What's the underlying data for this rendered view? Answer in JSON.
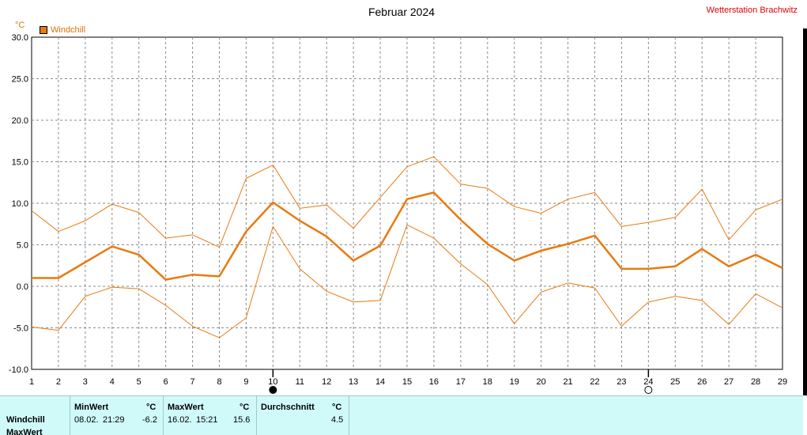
{
  "header": {
    "title": "Februar 2024",
    "station": "Wetterstation Brachwitz",
    "unit": "°C"
  },
  "legend": {
    "label": "Windchill",
    "color": "#e87a10"
  },
  "chart_data": {
    "type": "line",
    "title": "Februar 2024",
    "ylabel": "°C",
    "xlabel": "",
    "ylim": [
      -10,
      30
    ],
    "xlim": [
      1,
      29
    ],
    "grid": true,
    "legend_position": "top-left",
    "x": [
      1,
      2,
      3,
      4,
      5,
      6,
      7,
      8,
      9,
      10,
      11,
      12,
      13,
      14,
      15,
      16,
      17,
      18,
      19,
      20,
      21,
      22,
      23,
      24,
      25,
      26,
      27,
      28,
      29
    ],
    "x_tick_labels": [
      "1",
      "2",
      "3",
      "4",
      "5",
      "6",
      "7",
      "8",
      "9",
      "10",
      "11",
      "12",
      "13",
      "14",
      "15",
      "16",
      "17",
      "18",
      "19",
      "20",
      "21",
      "22",
      "23",
      "24",
      "25",
      "26",
      "27",
      "28",
      "29"
    ],
    "y_tick_labels": [
      "30.0",
      "25.0",
      "20.0",
      "15.0",
      "10.0",
      "5.0",
      "0.0",
      "-5.0",
      "-10.0"
    ],
    "series": [
      {
        "name": "Windchill",
        "role": "mean",
        "values": [
          1.0,
          1.0,
          2.9,
          4.8,
          3.8,
          0.8,
          1.4,
          1.2,
          6.6,
          10.1,
          7.9,
          6.0,
          3.1,
          4.9,
          10.5,
          11.3,
          8.0,
          5.1,
          3.1,
          4.3,
          5.1,
          6.1,
          2.1,
          2.1,
          2.4,
          4.5,
          2.4,
          3.8,
          2.2
        ]
      },
      {
        "role": "max",
        "values": [
          9.1,
          6.6,
          7.9,
          9.9,
          8.9,
          5.8,
          6.2,
          4.7,
          13.0,
          14.6,
          9.4,
          9.8,
          7.0,
          10.7,
          14.4,
          15.6,
          12.3,
          11.8,
          9.6,
          8.8,
          10.5,
          11.3,
          7.2,
          7.7,
          8.3,
          11.7,
          5.6,
          9.2,
          10.5
        ]
      },
      {
        "role": "min",
        "values": [
          -4.9,
          -5.3,
          -1.2,
          -0.1,
          -0.3,
          -2.3,
          -4.8,
          -6.2,
          -3.8,
          7.2,
          2.1,
          -0.6,
          -1.9,
          -1.7,
          7.4,
          5.8,
          2.7,
          0.2,
          -4.5,
          -0.7,
          0.4,
          -0.2,
          -4.8,
          -1.9,
          -1.2,
          -1.7,
          -4.6,
          -0.9,
          -2.6
        ]
      }
    ],
    "moon_phases": [
      {
        "day": 10,
        "phase": "new-moon"
      },
      {
        "day": 24,
        "phase": "full-moon"
      }
    ]
  },
  "stats": {
    "row_label": "Windchill",
    "row_label_2": "MaxWert",
    "min": {
      "header": "MinWert",
      "unit": "°C",
      "date": "08.02.",
      "time": "21:29",
      "value": "-6.2"
    },
    "max": {
      "header": "MaxWert",
      "unit": "°C",
      "date": "16.02.",
      "time": "15:21",
      "value": "15.6"
    },
    "avg": {
      "header": "Durchschnitt",
      "unit": "°C",
      "value": "4.5"
    }
  }
}
